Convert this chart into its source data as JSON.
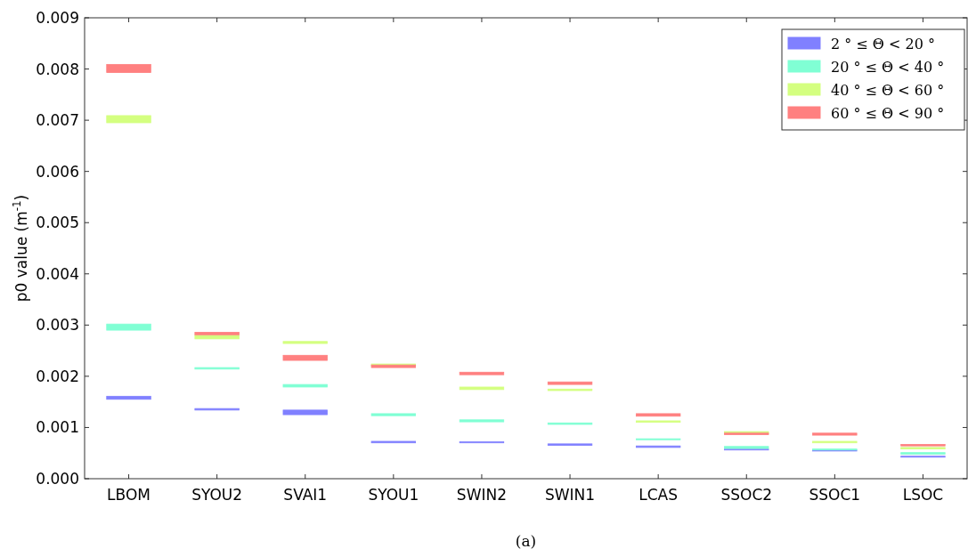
{
  "chart_data": {
    "type": "bar",
    "ylabel": "p0 value (m$^{-1}$)",
    "annotations": [
      "(a)"
    ],
    "categories": [
      "LBOM",
      "SYOU2",
      "SVAI1",
      "SYOU1",
      "SWIN2",
      "SWIN1",
      "LCAS",
      "SSOC2",
      "SSOC1",
      "LSOC"
    ],
    "series": [
      {
        "name": "2 ° ≤ Θ < 20 °",
        "color": "#8080ff",
        "base": [
          0.00155,
          0.00134,
          0.00125,
          0.0007,
          0.0007,
          0.00065,
          0.00061,
          0.00056,
          0.00054,
          0.00042
        ],
        "values": [
          6e-05,
          3e-05,
          9e-05,
          3e-05,
          2e-05,
          3e-05,
          3e-05,
          2e-05,
          2e-05,
          2e-05
        ]
      },
      {
        "name": "20 ° ≤ Θ < 40 °",
        "color": "#80ffd4",
        "base": [
          0.0029,
          0.00214,
          0.00179,
          0.00123,
          0.00111,
          0.00106,
          0.00076,
          0.00059,
          0.00056,
          0.00048
        ],
        "values": [
          0.00012,
          3e-05,
          5e-05,
          4e-05,
          4e-05,
          3e-05,
          2e-05,
          4e-05,
          2e-05,
          3e-05
        ]
      },
      {
        "name": "40 ° ≤ Θ < 60 °",
        "color": "#d4ff80",
        "base": [
          0.00695,
          0.00273,
          0.00264,
          0.0022,
          0.00174,
          0.00172,
          0.0011,
          0.00088,
          0.0007,
          0.00058
        ],
        "values": [
          0.00014,
          8e-05,
          4e-05,
          4e-05,
          5e-05,
          3e-05,
          3e-05,
          4e-05,
          3e-05,
          3e-05
        ]
      },
      {
        "name": "60 ° ≤ Θ < 90 °",
        "color": "#ff8080",
        "base": [
          0.00793,
          0.00281,
          0.00231,
          0.00217,
          0.00203,
          0.00184,
          0.00122,
          0.00086,
          0.00085,
          0.00064
        ],
        "values": [
          0.00016,
          5e-05,
          0.0001,
          5e-05,
          5e-05,
          5e-05,
          5e-05,
          3e-05,
          4e-05,
          3e-05
        ]
      }
    ],
    "ylim": [
      0,
      0.009
    ],
    "yticks": [
      {
        "value": 0,
        "label": "0.000"
      },
      {
        "value": 0.001,
        "label": "0.001"
      },
      {
        "value": 0.002,
        "label": "0.002"
      },
      {
        "value": 0.003,
        "label": "0.003"
      },
      {
        "value": 0.004,
        "label": "0.004"
      },
      {
        "value": 0.005,
        "label": "0.005"
      },
      {
        "value": 0.006,
        "label": "0.006"
      },
      {
        "value": 0.007,
        "label": "0.007"
      },
      {
        "value": 0.008,
        "label": "0.008"
      },
      {
        "value": 0.009,
        "label": "0.009"
      }
    ],
    "grid": false,
    "legend": "top right"
  }
}
